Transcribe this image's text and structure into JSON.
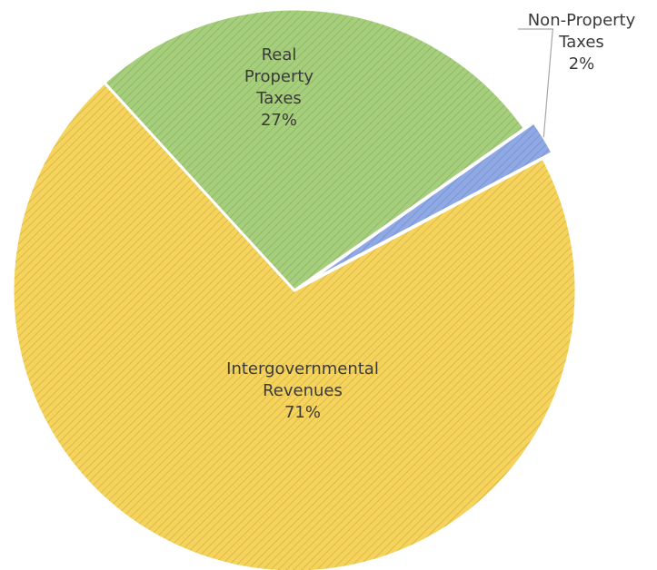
{
  "chart_data": {
    "type": "pie",
    "title": "",
    "slices": [
      {
        "label_lines": [
          "Intergovernmental",
          "Revenues"
        ],
        "value": 71,
        "percent_label": "71%",
        "color": "#F6D35B"
      },
      {
        "label_lines": [
          "Real",
          "Property",
          "Taxes"
        ],
        "value": 27,
        "percent_label": "27%",
        "color": "#A6CF7C"
      },
      {
        "label_lines": [
          "Non-Property",
          "Taxes"
        ],
        "value": 2,
        "percent_label": "2%",
        "color": "#8FA9E6"
      }
    ]
  }
}
